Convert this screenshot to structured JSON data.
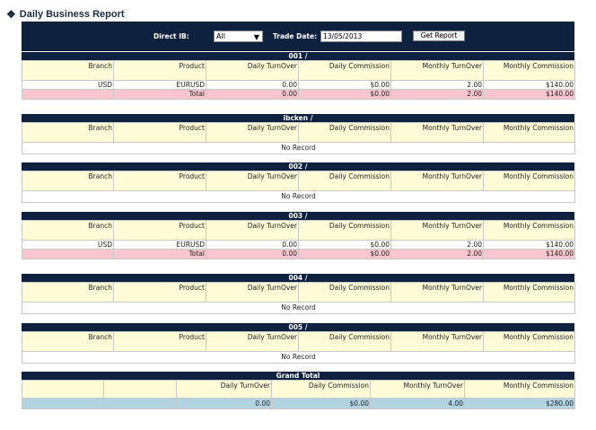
{
  "page": {
    "title": "Daily Business Report"
  },
  "filters": {
    "direct_ib_label": "Direct IB:",
    "direct_ib_value": "All",
    "trade_date_label": "Trade Date:",
    "trade_date_value": "13/05/2013",
    "get_report_label": "Get Report"
  },
  "columns": [
    "Branch",
    "Product",
    "Daily TurnOver",
    "Daily Commission",
    "Monthly TurnOver",
    "Monthly Commission"
  ],
  "no_record_text": "No Record",
  "sections": [
    {
      "title": "001 /",
      "rows": [
        [
          "USD",
          "EURUSD",
          "0.00",
          "$0.00",
          "2.00",
          "$140.00"
        ]
      ],
      "total": [
        "",
        "Total",
        "0.00",
        "$0.00",
        "2.00",
        "$140.00"
      ]
    },
    {
      "title": "ibcken /"
    },
    {
      "title": "002 /"
    },
    {
      "title": "003 /",
      "rows": [
        [
          "USD",
          "EURUSD",
          "0.00",
          "$0.00",
          "2.00",
          "$140.00"
        ]
      ],
      "total": [
        "",
        "Total",
        "0.00",
        "$0.00",
        "2.00",
        "$140.00"
      ]
    },
    {
      "title": "004 /"
    },
    {
      "title": "005 /"
    }
  ],
  "grand_total": {
    "title": "Grand Total",
    "columns": [
      "",
      "",
      "Daily TurnOver",
      "Daily Commission",
      "Monthly TurnOver",
      "Monthly Commission"
    ],
    "values": [
      "",
      "",
      "0.00",
      "$0.00",
      "4.00",
      "$280.00"
    ]
  }
}
